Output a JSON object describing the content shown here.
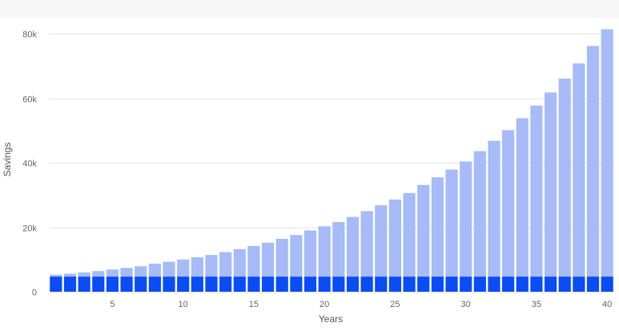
{
  "chart_data": {
    "type": "bar",
    "stacked": true,
    "xlabel": "Years",
    "ylabel": "Savings",
    "ylim": [
      0,
      85000
    ],
    "yticks": [
      0,
      20000,
      40000,
      60000,
      80000
    ],
    "ytick_labels": [
      "0",
      "20k",
      "40k",
      "60k",
      "80k"
    ],
    "xticks": [
      5,
      10,
      15,
      20,
      25,
      30,
      35,
      40
    ],
    "xtick_labels": [
      "5",
      "10",
      "15",
      "20",
      "25",
      "30",
      "35",
      "40"
    ],
    "grid": true,
    "legend": "none",
    "x": [
      1,
      2,
      3,
      4,
      5,
      6,
      7,
      8,
      9,
      10,
      11,
      12,
      13,
      14,
      15,
      16,
      17,
      18,
      19,
      20,
      21,
      22,
      23,
      24,
      25,
      26,
      27,
      28,
      29,
      30,
      31,
      32,
      33,
      34,
      35,
      36,
      37,
      38,
      39,
      40
    ],
    "series": [
      {
        "color": "#0a4cf5",
        "values": [
          4700,
          4700,
          4700,
          4700,
          4700,
          4700,
          4700,
          4700,
          4700,
          4700,
          4700,
          4700,
          4700,
          4700,
          4700,
          4700,
          4700,
          4700,
          4700,
          4700,
          4700,
          4700,
          4700,
          4700,
          4700,
          4700,
          4700,
          4700,
          4700,
          4700,
          4700,
          4700,
          4700,
          4700,
          4700,
          4700,
          4700,
          4700,
          4700,
          4700
        ]
      },
      {
        "color": "#a6bbf7",
        "values": [
          600,
          900,
          1300,
          1700,
          2200,
          2700,
          3200,
          4000,
          4600,
          5300,
          6000,
          6700,
          7600,
          8500,
          9500,
          10500,
          11700,
          12900,
          14300,
          15600,
          16900,
          18500,
          20300,
          22100,
          23900,
          25900,
          28400,
          30800,
          33200,
          35700,
          38900,
          42100,
          45400,
          49100,
          53000,
          57100,
          61400,
          66100,
          71500,
          76700
        ]
      }
    ]
  }
}
